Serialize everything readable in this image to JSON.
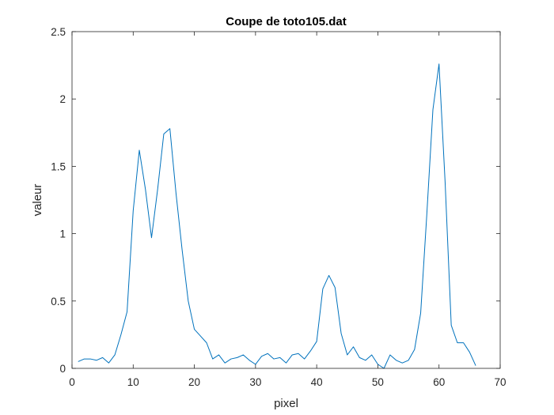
{
  "chart_data": {
    "type": "line",
    "title": "Coupe de toto105.dat",
    "xlabel": "pixel",
    "ylabel": "valeur",
    "xlim": [
      0,
      70
    ],
    "ylim": [
      0,
      2.5
    ],
    "xticks": [
      0,
      10,
      20,
      30,
      40,
      50,
      60,
      70
    ],
    "yticks": [
      0,
      0.5,
      1,
      1.5,
      2,
      2.5
    ],
    "xtick_labels": [
      "0",
      "10",
      "20",
      "30",
      "40",
      "50",
      "60",
      "70"
    ],
    "ytick_labels": [
      "0",
      "0.5",
      "1",
      "1.5",
      "2",
      "2.5"
    ],
    "grid": false,
    "colors": {
      "series": "#0072bd",
      "axes": "#262626",
      "background": "#ffffff"
    },
    "series": [
      {
        "x": [
          1,
          2,
          3,
          4,
          5,
          6,
          7,
          8,
          9,
          10,
          11,
          12,
          13,
          14,
          15,
          16,
          17,
          18,
          19,
          20,
          21,
          22,
          23,
          24,
          25,
          26,
          27,
          28,
          29,
          30,
          31,
          32,
          33,
          34,
          35,
          36,
          37,
          38,
          39,
          40,
          41,
          42,
          43,
          44,
          45,
          46,
          47,
          48,
          49,
          50,
          51,
          52,
          53,
          54,
          55,
          56,
          57,
          58,
          59,
          60,
          61,
          62,
          63,
          64,
          65,
          66
        ],
        "y": [
          0.05,
          0.07,
          0.07,
          0.06,
          0.08,
          0.04,
          0.1,
          0.25,
          0.42,
          1.17,
          1.62,
          1.33,
          0.97,
          1.33,
          1.74,
          1.78,
          1.3,
          0.88,
          0.5,
          0.29,
          0.24,
          0.19,
          0.07,
          0.1,
          0.04,
          0.07,
          0.08,
          0.1,
          0.06,
          0.03,
          0.09,
          0.11,
          0.07,
          0.08,
          0.04,
          0.1,
          0.11,
          0.07,
          0.13,
          0.2,
          0.59,
          0.69,
          0.6,
          0.26,
          0.1,
          0.16,
          0.08,
          0.06,
          0.1,
          0.03,
          0.0,
          0.1,
          0.06,
          0.04,
          0.06,
          0.14,
          0.41,
          1.14,
          1.92,
          2.26,
          1.38,
          0.32,
          0.19,
          0.19,
          0.12,
          0.02
        ]
      }
    ]
  }
}
